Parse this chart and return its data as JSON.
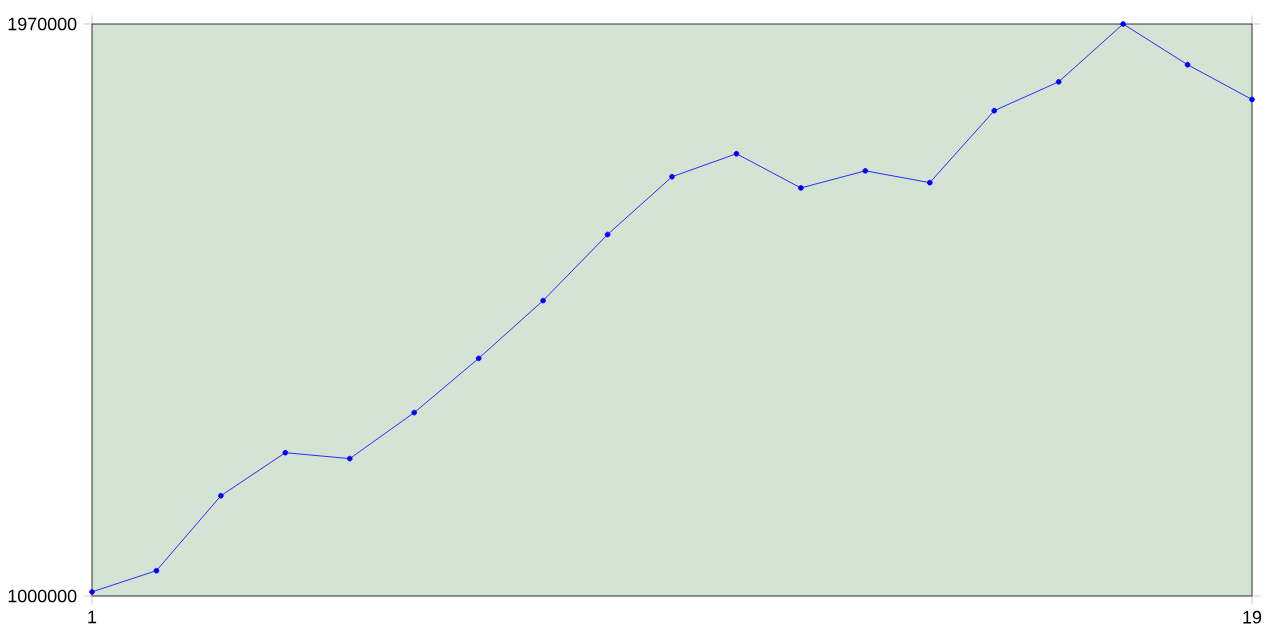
{
  "chart_data": {
    "type": "line",
    "x": [
      1,
      2,
      3,
      4,
      5,
      6,
      7,
      8,
      9,
      10,
      11,
      12,
      13,
      14,
      15,
      16,
      17,
      18,
      19
    ],
    "series": [
      {
        "color": "#0000ff",
        "values": [
          1007000,
          1043000,
          1170000,
          1243000,
          1233000,
          1311000,
          1403000,
          1501000,
          1613000,
          1711000,
          1750000,
          1692000,
          1721000,
          1701000,
          1823000,
          1872000,
          1970000,
          1901000,
          1842000
        ]
      }
    ],
    "xlim": [
      1,
      19
    ],
    "xticks": [
      1,
      19
    ],
    "ylim": [
      1000000,
      1970000
    ],
    "yticks": [
      1000000,
      1970000
    ],
    "marker": "circle",
    "line_style": "solid",
    "grid": false
  }
}
